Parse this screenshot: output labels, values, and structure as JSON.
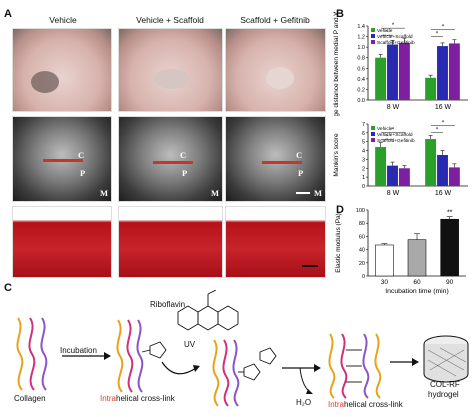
{
  "panels": {
    "a": {
      "letter": "A",
      "columns": [
        "Vehicle",
        "Vehicle + Scaffold",
        "Scaffold + Gefitnib"
      ],
      "xray_labels": {
        "c": "C",
        "p": "P",
        "m": "M"
      }
    },
    "b": {
      "letter": "B"
    },
    "d": {
      "letter": "D"
    },
    "c": {
      "letter": "C",
      "collagen": "Collagen",
      "incubation": "Incubation",
      "riboflavin": "Riboflavin",
      "uv": "UV",
      "intra1_red": "Intra",
      "intra1_rest": "helical cross-link",
      "intra2_red": "Intra",
      "intra2_rest": "helical cross-link",
      "h2o": "H₂O",
      "colrf_line1": "COL-RF",
      "colrf_line2": "hydrogel"
    }
  },
  "chart_data": [
    {
      "id": "b-top",
      "type": "bar",
      "ylabel": "Average distance between medial P and W (mm)",
      "categories": [
        "8 W",
        "16 W"
      ],
      "ylim": [
        0.0,
        1.4
      ],
      "yticks": [
        0.0,
        0.2,
        0.4,
        0.6,
        0.8,
        1.0,
        1.2,
        1.4
      ],
      "legend_position": "top-left",
      "series": [
        {
          "name": "Vehicle",
          "color": "#2aa02a",
          "values": [
            0.8,
            0.42
          ],
          "errors": [
            0.06,
            0.05
          ]
        },
        {
          "name": "Vehicle+Scaffold",
          "color": "#2a2ab0",
          "values": [
            1.05,
            1.02
          ],
          "errors": [
            0.08,
            0.06
          ]
        },
        {
          "name": "Scaffold+Gefitinib",
          "color": "#7d1fa0",
          "values": [
            1.08,
            1.07
          ],
          "errors": [
            0.09,
            0.07
          ]
        }
      ],
      "significance": [
        "*",
        "*",
        "*",
        "*"
      ]
    },
    {
      "id": "b-bottom",
      "type": "bar",
      "ylabel": "Mankin's score",
      "categories": [
        "8 W",
        "16 W"
      ],
      "ylim": [
        0,
        7
      ],
      "yticks": [
        0,
        1,
        2,
        3,
        4,
        5,
        6,
        7
      ],
      "legend_position": "top-left",
      "series": [
        {
          "name": "Vehicle",
          "color": "#2aa02a",
          "values": [
            4.4,
            5.3
          ],
          "errors": [
            0.5,
            0.4
          ]
        },
        {
          "name": "Vehicle+Scaffold",
          "color": "#2a2ab0",
          "values": [
            2.3,
            3.5
          ],
          "errors": [
            0.4,
            0.5
          ]
        },
        {
          "name": "Scaffold+Gefitinib",
          "color": "#7d1fa0",
          "values": [
            2.0,
            2.1
          ],
          "errors": [
            0.3,
            0.4
          ]
        }
      ],
      "significance": [
        "*",
        "*",
        "*",
        "*"
      ]
    },
    {
      "id": "d",
      "type": "bar",
      "xlabel": "Incubation time (min)",
      "ylabel": "Elastic modulus (Pa)",
      "categories": [
        "30",
        "60",
        "90"
      ],
      "values": [
        47,
        55,
        86
      ],
      "errors": [
        2,
        9,
        4
      ],
      "colors": [
        "#ffffff",
        "#a9a9a9",
        "#111111"
      ],
      "ylim": [
        0,
        100
      ],
      "yticks": [
        0,
        20,
        40,
        60,
        80,
        100
      ],
      "significance": [
        {
          "bar": 2,
          "label": "**"
        }
      ]
    }
  ]
}
